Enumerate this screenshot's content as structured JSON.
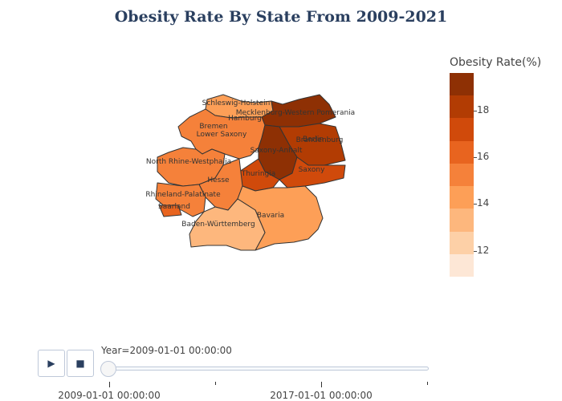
{
  "title": "Obesity Rate By State From 2009-2021",
  "colorbar": {
    "title": "Obesity Rate(%)",
    "ticks": [
      "18",
      "16",
      "14",
      "12"
    ],
    "range": [
      10.9,
      19.6
    ],
    "colors": [
      "#fde7d6",
      "#fdd0a7",
      "#fdb77d",
      "#fd9f57",
      "#f5813a",
      "#e8641f",
      "#d04a0b",
      "#b23c03",
      "#8e3004"
    ]
  },
  "chart_data": {
    "type": "map",
    "title": "Obesity Rate By State From 2009-2021",
    "legend_title": "Obesity Rate(%)",
    "frame": "2009-01-01 00:00:00",
    "regions": [
      {
        "name": "Schleswig-Holstein",
        "value": 14.5
      },
      {
        "name": "Mecklenburg-Western Pomerania",
        "value": 19.3
      },
      {
        "name": "Hamburg",
        "value": 13.6
      },
      {
        "name": "Bremen",
        "value": 15.2
      },
      {
        "name": "Lower Saxony",
        "value": 14.8
      },
      {
        "name": "Berlin",
        "value": 17.1
      },
      {
        "name": "Brandenburg",
        "value": 17.8
      },
      {
        "name": "Saxony-Anhalt",
        "value": 19.5
      },
      {
        "name": "North Rhine-Westphalia",
        "value": 15.5
      },
      {
        "name": "Thuringia",
        "value": 17.3
      },
      {
        "name": "Saxony",
        "value": 16.8
      },
      {
        "name": "Hesse",
        "value": 15.0
      },
      {
        "name": "Rhineland-Palatinate",
        "value": 15.6
      },
      {
        "name": "Saarland",
        "value": 16.7
      },
      {
        "name": "Bavaria",
        "value": 14.5
      },
      {
        "name": "Baden-Württemberg",
        "value": 13.4
      }
    ]
  },
  "animation": {
    "play_icon": "▶",
    "stop_icon": "■",
    "current_label": "Year=2009-01-01 00:00:00",
    "tick_labels": [
      "2009-01-01 00:00:00",
      "2017-01-01 00:00:00"
    ]
  }
}
